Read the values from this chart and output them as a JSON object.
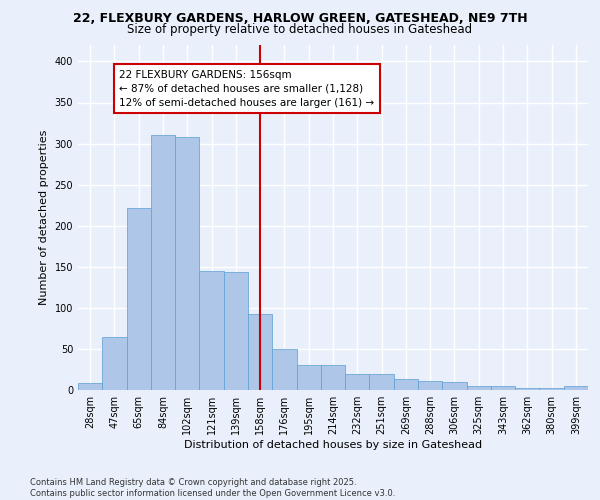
{
  "title": "22, FLEXBURY GARDENS, HARLOW GREEN, GATESHEAD, NE9 7TH",
  "subtitle": "Size of property relative to detached houses in Gateshead",
  "xlabel": "Distribution of detached houses by size in Gateshead",
  "ylabel": "Number of detached properties",
  "categories": [
    "28sqm",
    "47sqm",
    "65sqm",
    "84sqm",
    "102sqm",
    "121sqm",
    "139sqm",
    "158sqm",
    "176sqm",
    "195sqm",
    "214sqm",
    "232sqm",
    "251sqm",
    "269sqm",
    "288sqm",
    "306sqm",
    "325sqm",
    "343sqm",
    "362sqm",
    "380sqm",
    "399sqm"
  ],
  "values": [
    8,
    65,
    222,
    310,
    308,
    145,
    144,
    93,
    50,
    30,
    30,
    19,
    19,
    14,
    11,
    10,
    5,
    5,
    2,
    3,
    5
  ],
  "bar_color": "#aec6e8",
  "bar_edge_color": "#5a9fd4",
  "annotation_text_line1": "22 FLEXBURY GARDENS: 156sqm",
  "annotation_text_line2": "← 87% of detached houses are smaller (1,128)",
  "annotation_text_line3": "12% of semi-detached houses are larger (161) →",
  "annotation_box_color": "#ffffff",
  "annotation_box_edge": "#cc0000",
  "vline_color": "#cc0000",
  "vline_x_index": 7,
  "background_color": "#eaf0fb",
  "grid_color": "#ffffff",
  "footer_line1": "Contains HM Land Registry data © Crown copyright and database right 2025.",
  "footer_line2": "Contains public sector information licensed under the Open Government Licence v3.0.",
  "ylim": [
    0,
    420
  ],
  "title_fontsize": 9,
  "subtitle_fontsize": 8.5,
  "ylabel_fontsize": 8,
  "xlabel_fontsize": 8,
  "tick_fontsize": 7,
  "annotation_fontsize": 7.5,
  "footer_fontsize": 6
}
